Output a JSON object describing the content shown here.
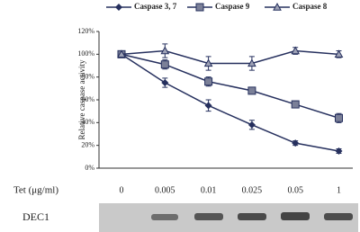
{
  "chart_data": {
    "type": "line",
    "y_label": "Relative caspase activity",
    "x_label": "Tet (μg/ml)",
    "blot_label": "DEC1",
    "categories": [
      "0",
      "0.005",
      "0.01",
      "0.025",
      "0.05",
      "1"
    ],
    "series": [
      {
        "name": "Caspase 3, 7",
        "color": "#26305e",
        "marker": "diamond",
        "values": [
          100,
          75,
          55,
          38,
          22,
          15
        ],
        "errors": [
          null,
          4,
          5,
          4,
          2,
          2
        ]
      },
      {
        "name": "Caspase 9",
        "color": "#26305e",
        "marker": "square",
        "values": [
          100,
          91,
          76,
          68,
          56,
          44
        ],
        "errors": [
          null,
          4,
          4,
          2,
          2,
          4
        ]
      },
      {
        "name": "Caspase 8",
        "color": "#26305e",
        "marker": "triangle",
        "values": [
          100,
          103,
          92,
          92,
          103,
          100
        ],
        "errors": [
          null,
          6,
          6,
          6,
          3,
          3
        ]
      }
    ],
    "ylim": [
      0,
      120
    ],
    "yticks": [
      {
        "value": 0,
        "label": "0%"
      },
      {
        "value": 20,
        "label": "20%"
      },
      {
        "value": 40,
        "label": "40%"
      },
      {
        "value": 60,
        "label": "60%"
      },
      {
        "value": 80,
        "label": "80%"
      },
      {
        "value": 100,
        "label": "100%"
      },
      {
        "value": 120,
        "label": "120%"
      }
    ]
  }
}
